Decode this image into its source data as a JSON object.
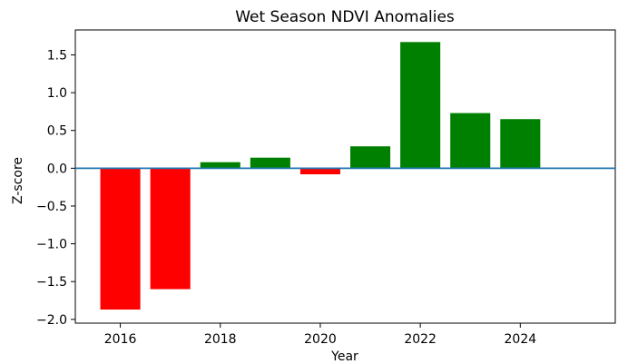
{
  "chart_data": {
    "type": "bar",
    "title": "Wet Season NDVI Anomalies",
    "xlabel": "Year",
    "ylabel": "Z-score",
    "x": [
      2016,
      2017,
      2018,
      2019,
      2020,
      2021,
      2022,
      2023,
      2024
    ],
    "values": [
      -1.87,
      -1.6,
      0.08,
      0.14,
      -0.08,
      0.29,
      1.67,
      0.73,
      0.65
    ],
    "xlim": [
      2015.1,
      2025.9
    ],
    "ylim": [
      -2.05,
      1.83
    ],
    "xticks": [
      2016,
      2018,
      2020,
      2022,
      2024
    ],
    "yticks": [
      -2.0,
      -1.5,
      -1.0,
      -0.5,
      0.0,
      0.5,
      1.0,
      1.5
    ],
    "ytick_labels": [
      "−2.0",
      "−1.5",
      "−1.0",
      "−0.5",
      "0.0",
      "0.5",
      "1.0",
      "1.5"
    ],
    "baseline": 0,
    "grid": false,
    "legend": false,
    "colors": {
      "positive": "#008000",
      "negative": "#ff0000",
      "baseline": "#1f77b4"
    }
  }
}
